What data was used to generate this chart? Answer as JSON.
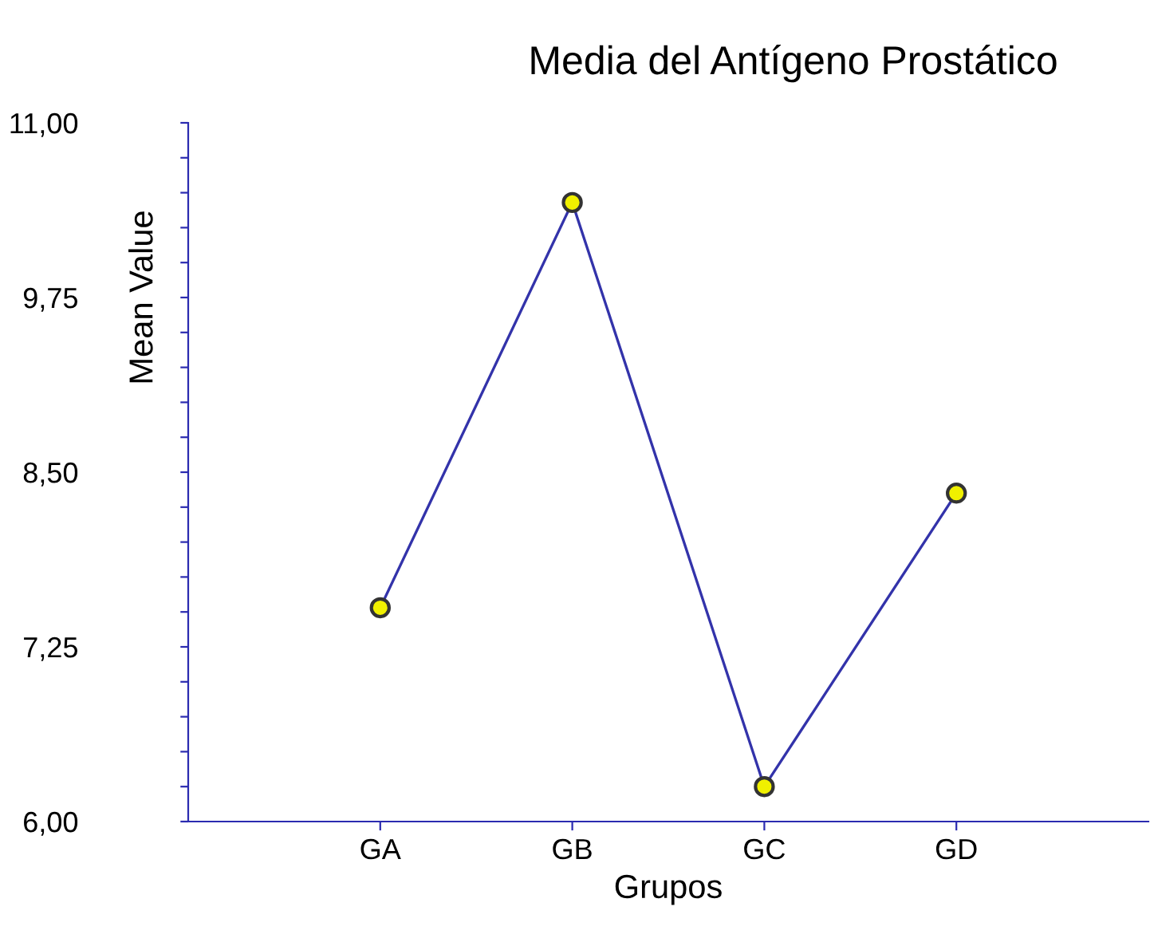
{
  "chart_data": {
    "type": "line",
    "title": "Media del Antígeno Prostático",
    "xlabel": "Grupos",
    "ylabel": "Mean Value",
    "categories": [
      "GA",
      "GB",
      "GC",
      "GD"
    ],
    "series": [
      {
        "color": "#3333aa",
        "values": [
          7.53,
          10.43,
          6.25,
          8.35
        ]
      }
    ],
    "marker": "circle",
    "line_style": "solid",
    "grid": false,
    "legend": false,
    "ylim": [
      6.0,
      11.0
    ],
    "yticks": [
      {
        "value": 6.0,
        "label": "6,00"
      },
      {
        "value": 6.25,
        "label": null
      },
      {
        "value": 6.5,
        "label": null
      },
      {
        "value": 6.75,
        "label": null
      },
      {
        "value": 7.0,
        "label": null
      },
      {
        "value": 7.25,
        "label": "7,25"
      },
      {
        "value": 7.5,
        "label": null
      },
      {
        "value": 7.75,
        "label": null
      },
      {
        "value": 8.0,
        "label": null
      },
      {
        "value": 8.25,
        "label": null
      },
      {
        "value": 8.5,
        "label": "8,50"
      },
      {
        "value": 8.75,
        "label": null
      },
      {
        "value": 9.0,
        "label": null
      },
      {
        "value": 9.25,
        "label": null
      },
      {
        "value": 9.5,
        "label": null
      },
      {
        "value": 9.75,
        "label": "9,75"
      },
      {
        "value": 10.0,
        "label": null
      },
      {
        "value": 10.25,
        "label": null
      },
      {
        "value": 10.5,
        "label": null
      },
      {
        "value": 10.75,
        "label": null
      },
      {
        "value": 11.0,
        "label": "11,00"
      }
    ]
  }
}
